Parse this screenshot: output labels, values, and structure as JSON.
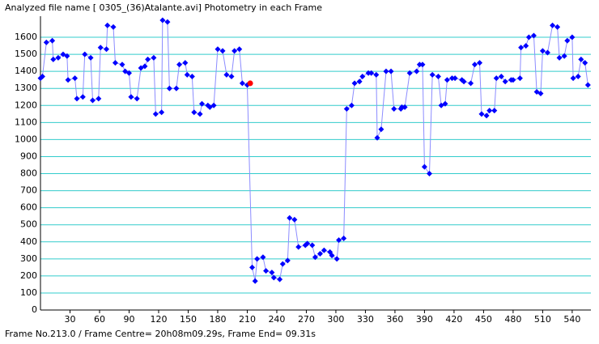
{
  "chart_data": {
    "type": "line",
    "title": "Analyzed file name [ 0305_(36)Atalante.avi]   Photometry in each Frame",
    "footer": "Frame No.213.0 / Frame Centre= 20h08m09.29s,  Frame End= 09.31s",
    "x": [
      0,
      2,
      6,
      12,
      13,
      18,
      23,
      27,
      28,
      35,
      37,
      43,
      45,
      51,
      53,
      59,
      61,
      67,
      68,
      74,
      76,
      83,
      86,
      90,
      92,
      98,
      102,
      106,
      109,
      115,
      117,
      123,
      124,
      129,
      131,
      138,
      141,
      147,
      149,
      154,
      156,
      162,
      164,
      170,
      172,
      176,
      180,
      185,
      189,
      194,
      197,
      202,
      205,
      210,
      215,
      218,
      220,
      226,
      229,
      235,
      237,
      243,
      246,
      251,
      253,
      258,
      262,
      269,
      271,
      276,
      279,
      284,
      288,
      294,
      296,
      301,
      303,
      308,
      311,
      316,
      319,
      324,
      327,
      333,
      336,
      341,
      342,
      346,
      351,
      356,
      359,
      366,
      367,
      370,
      375,
      382,
      385,
      388,
      390,
      395,
      398,
      404,
      407,
      411,
      413,
      418,
      421,
      428,
      430,
      437,
      441,
      446,
      448,
      453,
      456,
      461,
      463,
      468,
      472,
      478,
      480,
      487,
      488,
      493,
      496,
      501,
      504,
      508,
      510,
      515,
      520,
      525,
      527,
      532,
      535,
      540,
      541,
      546,
      549,
      553,
      556
    ],
    "series": [
      {
        "name": "Photometry",
        "color": "#0000ff",
        "line_color": "#8c8cff",
        "values": [
          1360,
          1370,
          1570,
          1580,
          1470,
          1480,
          1500,
          1490,
          1350,
          1360,
          1240,
          1250,
          1500,
          1480,
          1230,
          1240,
          1540,
          1530,
          1670,
          1660,
          1450,
          1440,
          1400,
          1390,
          1250,
          1240,
          1420,
          1430,
          1470,
          1480,
          1150,
          1160,
          1700,
          1690,
          1300,
          1300,
          1440,
          1450,
          1380,
          1370,
          1160,
          1150,
          1210,
          1200,
          1190,
          1200,
          1530,
          1520,
          1380,
          1370,
          1520,
          1530,
          1330,
          1320,
          250,
          170,
          300,
          310,
          230,
          220,
          190,
          180,
          270,
          290,
          540,
          530,
          370,
          380,
          390,
          380,
          310,
          330,
          350,
          340,
          320,
          300,
          410,
          420,
          1180,
          1200,
          1330,
          1340,
          1370,
          1390,
          1390,
          1380,
          1010,
          1060,
          1400,
          1400,
          1180,
          1180,
          1190,
          1190,
          1390,
          1400,
          1440,
          1440,
          840,
          800,
          1380,
          1370,
          1200,
          1210,
          1350,
          1360,
          1360,
          1350,
          1340,
          1330,
          1440,
          1450,
          1150,
          1140,
          1170,
          1170,
          1360,
          1370,
          1340,
          1350,
          1350,
          1360,
          1540,
          1550,
          1600,
          1610,
          1280,
          1270,
          1520,
          1510,
          1670,
          1660,
          1480,
          1490,
          1580,
          1600,
          1360,
          1370,
          1470,
          1450,
          1320
        ]
      }
    ],
    "current_frame": {
      "x": 213,
      "value": 1330,
      "color": "#ff0000"
    },
    "xlim": [
      0,
      559
    ],
    "ylim": [
      0,
      1700
    ],
    "xticks": [
      30,
      60,
      90,
      120,
      150,
      180,
      210,
      240,
      270,
      300,
      330,
      360,
      390,
      420,
      450,
      480,
      510,
      540
    ],
    "yticks": [
      0,
      100,
      200,
      300,
      400,
      500,
      600,
      700,
      800,
      900,
      1000,
      1100,
      1200,
      1300,
      1400,
      1500,
      1600
    ],
    "grid": true,
    "grid_color": "#33cccc"
  }
}
